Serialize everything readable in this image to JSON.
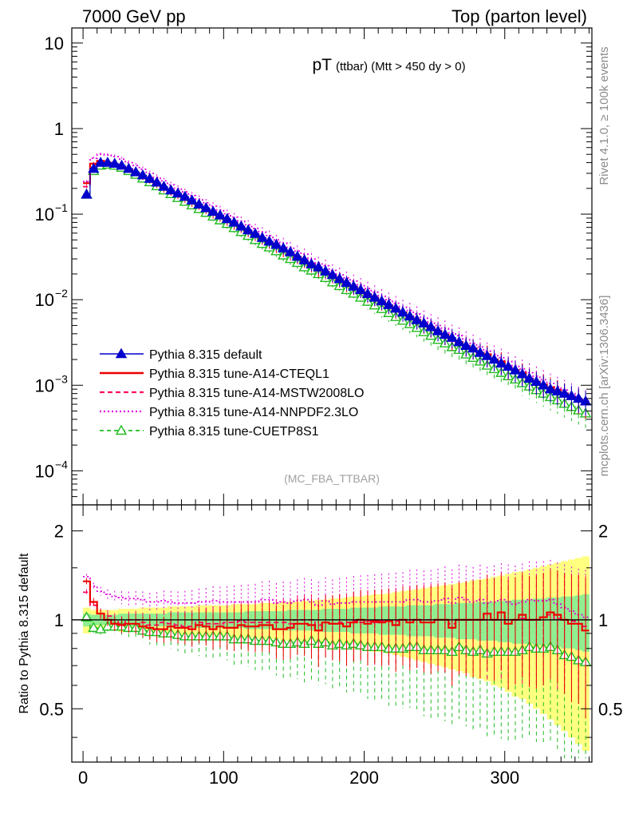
{
  "header": {
    "left": "7000 GeV pp",
    "right": "Top (parton level)"
  },
  "side_labels": {
    "rivet": "Rivet 4.1.0, ≥ 100k events",
    "mcplots": "mcplots.cern.ch [arXiv:1306.3436]"
  },
  "colors": {
    "default": "#0000cc",
    "cteql1": "#ee0000",
    "mstw": "#ff0066",
    "nnpdf": "#dd00dd",
    "cuetp": "#22bb22",
    "band_green": "#90ee90",
    "band_yellow": "#ffff80"
  },
  "chart_data": [
    {
      "type": "line",
      "title": "pT",
      "title_note": "(ttbar) (Mtt > 450 dy > 0)",
      "watermark": "(MC_FBA_TTBAR)",
      "xlabel": "",
      "ylabel": "",
      "yscale": "log",
      "xlim": [
        -8,
        362
      ],
      "ylim": [
        4e-05,
        15
      ],
      "y_ticks": [
        {
          "value": 10,
          "base": "10",
          "exp": ""
        },
        {
          "value": 1,
          "base": "1",
          "exp": ""
        },
        {
          "value": 0.1,
          "base": "10",
          "exp": "−1"
        },
        {
          "value": 0.01,
          "base": "10",
          "exp": "−2"
        },
        {
          "value": 0.001,
          "base": "10",
          "exp": "−3"
        },
        {
          "value": 0.0001,
          "base": "10",
          "exp": "−4"
        }
      ],
      "legend": [
        {
          "label": "Pythia 8.315 default",
          "key": "default"
        },
        {
          "label": "Pythia 8.315 tune-A14-CTEQL1",
          "key": "cteql1"
        },
        {
          "label": "Pythia 8.315 tune-A14-MSTW2008LO",
          "key": "mstw"
        },
        {
          "label": "Pythia 8.315 tune-A14-NNPDF2.3LO",
          "key": "nnpdf"
        },
        {
          "label": "Pythia 8.315 tune-CUETP8S1",
          "key": "cuetp"
        }
      ],
      "x": [
        2.5,
        7.5,
        12.5,
        17.5,
        22.5,
        27.5,
        32.5,
        37.5,
        42.5,
        47.5,
        52.5,
        57.5,
        62.5,
        67.5,
        72.5,
        77.5,
        82.5,
        87.5,
        92.5,
        97.5,
        102.5,
        107.5,
        112.5,
        117.5,
        122.5,
        127.5,
        132.5,
        137.5,
        142.5,
        147.5,
        152.5,
        157.5,
        162.5,
        167.5,
        172.5,
        177.5,
        182.5,
        187.5,
        192.5,
        197.5,
        202.5,
        207.5,
        212.5,
        217.5,
        222.5,
        227.5,
        232.5,
        237.5,
        242.5,
        247.5,
        252.5,
        257.5,
        262.5,
        267.5,
        272.5,
        277.5,
        282.5,
        287.5,
        292.5,
        297.5,
        302.5,
        307.5,
        312.5,
        317.5,
        322.5,
        327.5,
        332.5,
        337.5,
        342.5,
        347.5,
        352.5,
        357.5
      ],
      "series": [
        {
          "key": "default",
          "name": "Pythia 8.315 default",
          "values": [
            0.17,
            0.34,
            0.4,
            0.4,
            0.39,
            0.37,
            0.34,
            0.31,
            0.285,
            0.26,
            0.235,
            0.21,
            0.19,
            0.175,
            0.16,
            0.145,
            0.13,
            0.118,
            0.107,
            0.097,
            0.088,
            0.08,
            0.072,
            0.065,
            0.059,
            0.053,
            0.048,
            0.044,
            0.04,
            0.036,
            0.032,
            0.029,
            0.026,
            0.024,
            0.0215,
            0.0195,
            0.0175,
            0.0158,
            0.0143,
            0.013,
            0.0117,
            0.0106,
            0.0096,
            0.0087,
            0.0079,
            0.0071,
            0.0064,
            0.0058,
            0.0053,
            0.0048,
            0.0043,
            0.0039,
            0.0036,
            0.0032,
            0.0029,
            0.0027,
            0.0024,
            0.0022,
            0.002,
            0.0018,
            0.00165,
            0.0015,
            0.00135,
            0.0012,
            0.0011,
            0.001,
            0.0009,
            0.00085,
            0.0008,
            0.00075,
            0.0007,
            0.00065
          ]
        },
        {
          "key": "cteql1",
          "name": "Pythia 8.315 tune-A14-CTEQL1",
          "values": [
            0.23,
            0.39,
            0.42,
            0.4,
            0.38,
            0.355,
            0.33,
            0.3,
            0.27,
            0.245,
            0.22,
            0.195,
            0.18,
            0.165,
            0.15,
            0.135,
            0.125,
            0.112,
            0.1,
            0.092,
            0.083,
            0.075,
            0.069,
            0.062,
            0.056,
            0.051,
            0.046,
            0.041,
            0.037,
            0.034,
            0.031,
            0.028,
            0.025,
            0.022,
            0.021,
            0.019,
            0.017,
            0.015,
            0.014,
            0.013,
            0.0114,
            0.0105,
            0.0094,
            0.0086,
            0.0076,
            0.0071,
            0.0063,
            0.0058,
            0.0052,
            0.0047,
            0.0043,
            0.0039,
            0.0034,
            0.0032,
            0.0029,
            0.0027,
            0.0024,
            0.0023,
            0.002,
            0.0019,
            0.0016,
            0.0015,
            0.0014,
            0.0012,
            0.0011,
            0.00102,
            0.00095,
            0.00088,
            0.0008,
            0.00073,
            0.00068,
            0.0006
          ]
        },
        {
          "key": "mstw",
          "name": "Pythia 8.315 tune-A14-MSTW2008LO",
          "values": [
            0.21,
            0.38,
            0.42,
            0.41,
            0.39,
            0.36,
            0.34,
            0.31,
            0.28,
            0.25,
            0.225,
            0.205,
            0.185,
            0.168,
            0.152,
            0.138,
            0.127,
            0.115,
            0.104,
            0.094,
            0.086,
            0.078,
            0.071,
            0.064,
            0.058,
            0.052,
            0.047,
            0.043,
            0.039,
            0.035,
            0.032,
            0.029,
            0.026,
            0.023,
            0.021,
            0.019,
            0.0172,
            0.0155,
            0.0142,
            0.0128,
            0.0116,
            0.0104,
            0.0095,
            0.0086,
            0.0078,
            0.0071,
            0.0064,
            0.0058,
            0.0053,
            0.0048,
            0.0043,
            0.0039,
            0.0035,
            0.0032,
            0.0029,
            0.0027,
            0.0024,
            0.0022,
            0.002,
            0.0018,
            0.00165,
            0.0015,
            0.00137,
            0.0012,
            0.0011,
            0.00102,
            0.00094,
            0.00086,
            0.0008,
            0.00074,
            0.00068,
            0.00062
          ]
        },
        {
          "key": "nnpdf",
          "name": "Pythia 8.315 tune-A14-NNPDF2.3LO",
          "values": [
            0.24,
            0.45,
            0.5,
            0.49,
            0.47,
            0.44,
            0.4,
            0.37,
            0.335,
            0.3,
            0.27,
            0.245,
            0.22,
            0.2,
            0.182,
            0.165,
            0.15,
            0.136,
            0.124,
            0.112,
            0.101,
            0.092,
            0.083,
            0.075,
            0.068,
            0.062,
            0.056,
            0.05,
            0.046,
            0.041,
            0.037,
            0.034,
            0.03,
            0.027,
            0.025,
            0.022,
            0.02,
            0.018,
            0.0165,
            0.015,
            0.0135,
            0.0122,
            0.011,
            0.01,
            0.0091,
            0.0082,
            0.0075,
            0.0068,
            0.0061,
            0.0055,
            0.005,
            0.0046,
            0.0041,
            0.0038,
            0.0034,
            0.0031,
            0.0028,
            0.0025,
            0.0023,
            0.0021,
            0.0019,
            0.0017,
            0.00155,
            0.0014,
            0.00128,
            0.00116,
            0.00105,
            0.00096,
            0.00088,
            0.0008,
            0.00073,
            0.00066
          ]
        },
        {
          "key": "cuetp",
          "name": "Pythia 8.315 tune-CUETP8S1",
          "values": [
            0.17,
            0.32,
            0.37,
            0.38,
            0.37,
            0.35,
            0.32,
            0.29,
            0.262,
            0.237,
            0.213,
            0.19,
            0.172,
            0.155,
            0.14,
            0.127,
            0.115,
            0.104,
            0.094,
            0.085,
            0.077,
            0.069,
            0.062,
            0.056,
            0.05,
            0.045,
            0.041,
            0.037,
            0.033,
            0.03,
            0.027,
            0.024,
            0.022,
            0.02,
            0.018,
            0.016,
            0.0145,
            0.013,
            0.0118,
            0.0106,
            0.0095,
            0.0086,
            0.0078,
            0.007,
            0.0063,
            0.0057,
            0.0052,
            0.0047,
            0.0042,
            0.0038,
            0.0034,
            0.0031,
            0.0028,
            0.0026,
            0.0023,
            0.0021,
            0.0019,
            0.0017,
            0.00155,
            0.0014,
            0.00128,
            0.00117,
            0.00106,
            0.00097,
            0.00088,
            0.0008,
            0.00073,
            0.00067,
            0.00061,
            0.00056,
            0.00051,
            0.00047
          ]
        }
      ]
    },
    {
      "type": "line",
      "title": "",
      "xlabel": "",
      "ylabel": "Ratio to Pythia 8.315 default",
      "yscale": "log",
      "xlim": [
        -8,
        362
      ],
      "ylim": [
        0.33,
        2.45
      ],
      "x_ticks": [
        0,
        100,
        200,
        300
      ],
      "y_ticks": [
        {
          "value": 2,
          "label": "2"
        },
        {
          "value": 1,
          "label": "1"
        },
        {
          "value": 0.5,
          "label": "0.5"
        }
      ],
      "reference": 1,
      "band_green_halfwidth": [
        0.05,
        0.04,
        0.04,
        0.04,
        0.04,
        0.05,
        0.05,
        0.05,
        0.05,
        0.05,
        0.05,
        0.05,
        0.06,
        0.06,
        0.06,
        0.06,
        0.06,
        0.06,
        0.06,
        0.06,
        0.06,
        0.06,
        0.06,
        0.07,
        0.07,
        0.07,
        0.07,
        0.07,
        0.07,
        0.08,
        0.08,
        0.08,
        0.08,
        0.08,
        0.09,
        0.09,
        0.09,
        0.09,
        0.1,
        0.1,
        0.1,
        0.1,
        0.11,
        0.11,
        0.11,
        0.11,
        0.12,
        0.12,
        0.12,
        0.12,
        0.13,
        0.13,
        0.13,
        0.14,
        0.14,
        0.14,
        0.15,
        0.15,
        0.15,
        0.16,
        0.16,
        0.17,
        0.17,
        0.17,
        0.18,
        0.18,
        0.19,
        0.19,
        0.2,
        0.2,
        0.21,
        0.22
      ],
      "band_yellow_halfwidth": [
        0.1,
        0.08,
        0.08,
        0.08,
        0.08,
        0.09,
        0.09,
        0.09,
        0.1,
        0.1,
        0.1,
        0.1,
        0.11,
        0.11,
        0.11,
        0.11,
        0.12,
        0.12,
        0.12,
        0.12,
        0.12,
        0.13,
        0.13,
        0.13,
        0.13,
        0.14,
        0.14,
        0.14,
        0.15,
        0.15,
        0.15,
        0.16,
        0.16,
        0.17,
        0.17,
        0.18,
        0.18,
        0.19,
        0.2,
        0.2,
        0.21,
        0.22,
        0.22,
        0.23,
        0.24,
        0.25,
        0.26,
        0.27,
        0.28,
        0.29,
        0.3,
        0.31,
        0.32,
        0.33,
        0.34,
        0.36,
        0.37,
        0.38,
        0.4,
        0.41,
        0.43,
        0.45,
        0.46,
        0.48,
        0.5,
        0.52,
        0.54,
        0.56,
        0.58,
        0.6,
        0.62,
        0.64
      ],
      "series": [
        {
          "key": "cteql1",
          "name": "Pythia 8.315 tune-A14-CTEQL1",
          "values": [
            1.35,
            1.15,
            1.05,
            1.0,
            0.97,
            0.96,
            0.97,
            0.97,
            0.95,
            0.94,
            0.93,
            0.93,
            0.95,
            0.94,
            0.94,
            0.93,
            0.96,
            0.95,
            0.93,
            0.95,
            0.94,
            0.94,
            0.96,
            0.95,
            0.95,
            0.96,
            0.96,
            0.93,
            0.93,
            0.94,
            0.97,
            0.97,
            0.96,
            0.92,
            0.98,
            0.97,
            0.97,
            0.95,
            0.98,
            1.0,
            0.97,
            0.99,
            0.98,
            0.99,
            0.96,
            1.0,
            0.98,
            1.0,
            0.98,
            0.98,
            1.0,
            1.0,
            0.94,
            1.0,
            1.0,
            1.0,
            1.0,
            1.05,
            1.0,
            1.06,
            0.97,
            1.0,
            1.04,
            1.0,
            1.0,
            1.02,
            1.06,
            1.04,
            1.0,
            0.97,
            0.97,
            0.92
          ]
        },
        {
          "key": "mstw",
          "name": "Pythia 8.315 tune-A14-MSTW2008LO",
          "values": [
            1.24,
            1.12,
            1.05,
            1.03,
            1.0,
            0.97,
            1.0,
            1.0,
            0.98,
            0.96,
            0.96,
            0.98,
            0.97,
            0.96,
            0.95,
            0.95,
            0.98,
            0.97,
            0.97,
            0.97,
            0.98,
            0.98,
            0.99,
            0.98,
            0.98,
            0.98,
            0.98,
            0.98,
            0.98,
            0.97,
            1.0,
            1.0,
            1.0,
            0.96,
            0.98,
            0.97,
            0.98,
            0.98,
            0.99,
            0.98,
            0.99,
            0.98,
            0.99,
            0.99,
            0.99,
            1.0,
            1.0,
            1.0,
            1.0,
            1.0,
            1.0,
            1.0,
            0.97,
            1.0,
            1.0,
            1.0,
            1.0,
            1.0,
            1.0,
            1.0,
            1.0,
            1.0,
            1.01,
            1.0,
            1.0,
            1.02,
            1.04,
            1.01,
            1.0,
            0.99,
            0.97,
            0.95
          ]
        },
        {
          "key": "nnpdf",
          "name": "Pythia 8.315 tune-A14-NNPDF2.3LO",
          "values": [
            1.4,
            1.3,
            1.25,
            1.22,
            1.2,
            1.19,
            1.18,
            1.18,
            1.17,
            1.15,
            1.15,
            1.16,
            1.15,
            1.14,
            1.14,
            1.14,
            1.15,
            1.15,
            1.16,
            1.15,
            1.15,
            1.15,
            1.15,
            1.15,
            1.15,
            1.17,
            1.17,
            1.14,
            1.15,
            1.14,
            1.16,
            1.17,
            1.15,
            1.12,
            1.16,
            1.13,
            1.14,
            1.14,
            1.15,
            1.15,
            1.15,
            1.15,
            1.15,
            1.15,
            1.15,
            1.15,
            1.17,
            1.17,
            1.15,
            1.15,
            1.16,
            1.18,
            1.14,
            1.19,
            1.17,
            1.15,
            1.17,
            1.14,
            1.15,
            1.17,
            1.15,
            1.13,
            1.15,
            1.17,
            1.16,
            1.16,
            1.17,
            1.13,
            1.1,
            1.07,
            1.04,
            1.02
          ]
        },
        {
          "key": "cuetp",
          "name": "Pythia 8.315 tune-CUETP8S1",
          "values": [
            1.02,
            0.94,
            0.93,
            0.95,
            0.95,
            0.95,
            0.94,
            0.94,
            0.92,
            0.91,
            0.91,
            0.9,
            0.9,
            0.89,
            0.88,
            0.88,
            0.88,
            0.88,
            0.88,
            0.88,
            0.88,
            0.86,
            0.86,
            0.86,
            0.85,
            0.85,
            0.85,
            0.84,
            0.83,
            0.83,
            0.84,
            0.83,
            0.85,
            0.83,
            0.84,
            0.82,
            0.83,
            0.82,
            0.83,
            0.82,
            0.81,
            0.81,
            0.81,
            0.8,
            0.8,
            0.8,
            0.81,
            0.81,
            0.79,
            0.79,
            0.79,
            0.79,
            0.78,
            0.81,
            0.79,
            0.78,
            0.79,
            0.77,
            0.78,
            0.78,
            0.78,
            0.78,
            0.79,
            0.81,
            0.8,
            0.8,
            0.81,
            0.79,
            0.76,
            0.75,
            0.73,
            0.72
          ]
        }
      ]
    }
  ]
}
